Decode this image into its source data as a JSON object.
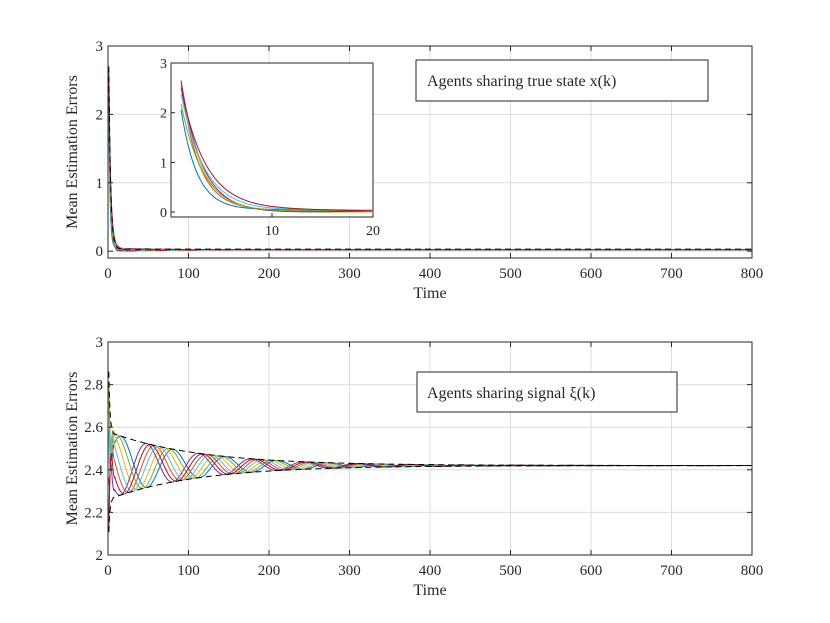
{
  "colors": {
    "agents": [
      "#0072BD",
      "#D95319",
      "#EDB120",
      "#7E2F8E",
      "#77AC30",
      "#4DBEEE",
      "#A2142F"
    ],
    "bound": "#000000",
    "grid": "#dcdcdc"
  },
  "chart_data": [
    {
      "type": "line",
      "xlabel": "Time",
      "ylabel": "Mean Estimation Errors",
      "xlim": [
        0,
        800
      ],
      "ylim": [
        -0.1,
        3
      ],
      "xticks": [
        0,
        100,
        200,
        300,
        400,
        500,
        600,
        700,
        800
      ],
      "yticks": [
        0,
        1,
        2,
        3
      ],
      "grid": true,
      "legend": {
        "text": "Agents sharing true state x(k)",
        "placement": "top-right"
      },
      "series_model": {
        "kind": "decay",
        "initial_values": [
          2.05,
          2.55,
          2.6,
          2.65,
          2.2,
          2.4,
          2.5
        ],
        "settle_time": 8,
        "steady_value": 0.02
      },
      "envelope": {
        "style": "dashed",
        "initial": 2.7,
        "steady_value": 0.03
      },
      "inset": {
        "xlim": [
          0,
          20
        ],
        "ylim": [
          -0.1,
          3
        ],
        "xticks": [
          10,
          20
        ],
        "yticks": [
          0,
          1,
          2,
          3
        ],
        "grid": false
      }
    },
    {
      "type": "line",
      "xlabel": "Time",
      "ylabel": "Mean Estimation Errors",
      "xlim": [
        0,
        800
      ],
      "ylim": [
        2,
        3
      ],
      "xticks": [
        0,
        100,
        200,
        300,
        400,
        500,
        600,
        700,
        800
      ],
      "yticks": [
        2,
        2.2,
        2.4,
        2.6,
        2.8,
        3
      ],
      "grid": true,
      "legend": {
        "text": "Agents sharing signal ξ(k)",
        "placement": "top-right"
      },
      "series_model": {
        "kind": "damped-oscillation",
        "steady_value": 2.42,
        "amplitude": 0.16,
        "decay_time": 110,
        "period": 65,
        "phase_offsets": [
          0,
          2.2,
          1.1,
          3.2,
          0.5,
          1.7,
          2.7
        ]
      },
      "envelope": {
        "style": "dashed",
        "center": 2.42,
        "amplitude": 0.16,
        "decay_time": 110
      }
    }
  ]
}
